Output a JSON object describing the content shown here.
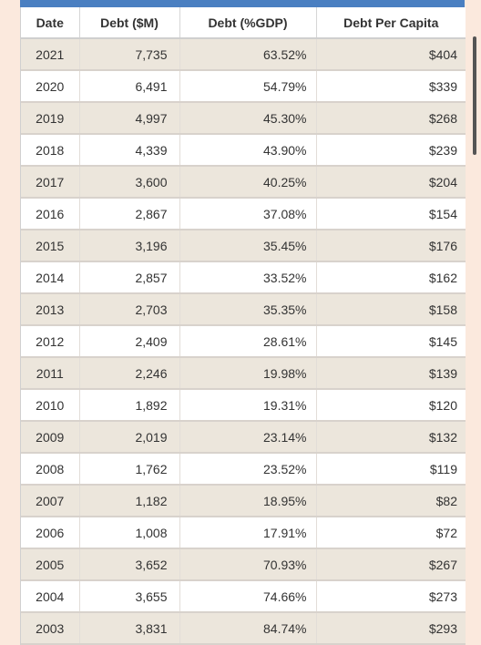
{
  "table": {
    "headers": [
      "Date",
      "Debt ($M)",
      "Debt (%GDP)",
      "Debt Per Capita"
    ],
    "rows": [
      [
        "2021",
        "7,735",
        "63.52%",
        "$404"
      ],
      [
        "2020",
        "6,491",
        "54.79%",
        "$339"
      ],
      [
        "2019",
        "4,997",
        "45.30%",
        "$268"
      ],
      [
        "2018",
        "4,339",
        "43.90%",
        "$239"
      ],
      [
        "2017",
        "3,600",
        "40.25%",
        "$204"
      ],
      [
        "2016",
        "2,867",
        "37.08%",
        "$154"
      ],
      [
        "2015",
        "3,196",
        "35.45%",
        "$176"
      ],
      [
        "2014",
        "2,857",
        "33.52%",
        "$162"
      ],
      [
        "2013",
        "2,703",
        "35.35%",
        "$158"
      ],
      [
        "2012",
        "2,409",
        "28.61%",
        "$145"
      ],
      [
        "2011",
        "2,246",
        "19.98%",
        "$139"
      ],
      [
        "2010",
        "1,892",
        "19.31%",
        "$120"
      ],
      [
        "2009",
        "2,019",
        "23.14%",
        "$132"
      ],
      [
        "2008",
        "1,762",
        "23.52%",
        "$119"
      ],
      [
        "2007",
        "1,182",
        "18.95%",
        "$82"
      ],
      [
        "2006",
        "1,008",
        "17.91%",
        "$72"
      ],
      [
        "2005",
        "3,652",
        "70.93%",
        "$267"
      ],
      [
        "2004",
        "3,655",
        "74.66%",
        "$273"
      ],
      [
        "2003",
        "3,831",
        "84.74%",
        "$293"
      ]
    ]
  },
  "colors": {
    "page_background": "#fbe9dd",
    "header_bar": "#4a7fc1",
    "stripe_row": "#ece6dc",
    "plain_row": "#ffffff"
  }
}
